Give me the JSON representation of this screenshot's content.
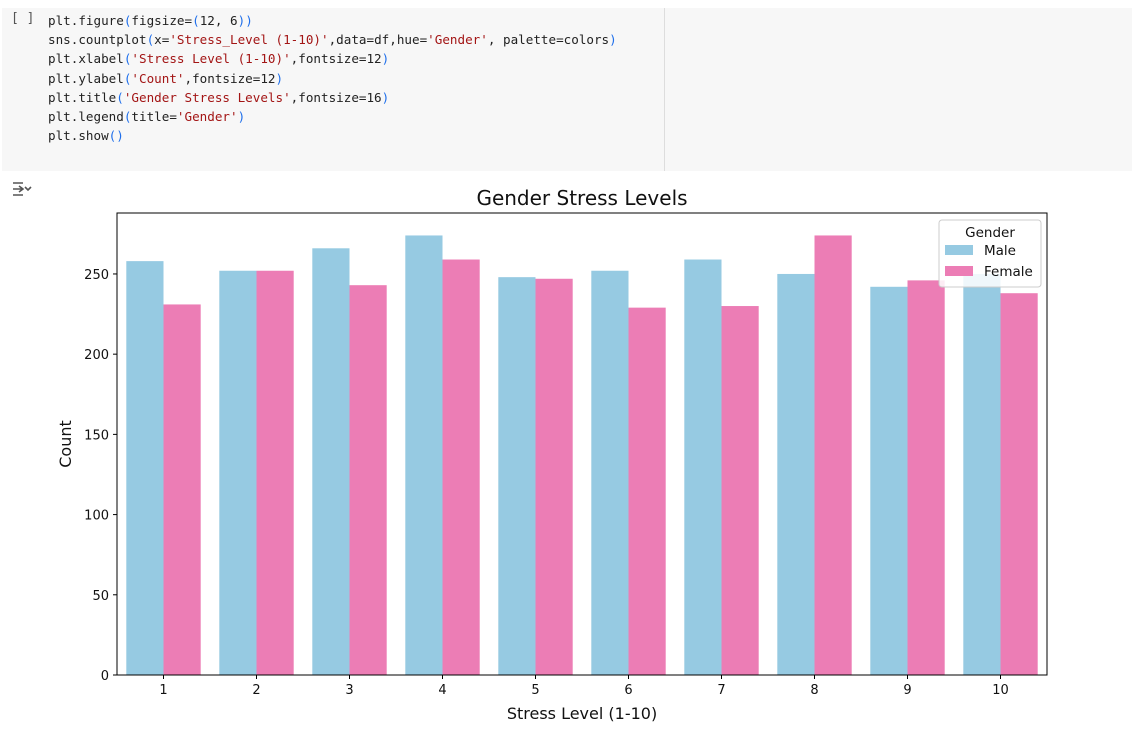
{
  "cell": {
    "run_label": "[ ]",
    "code_lines": [
      "plt.figure(figsize=(12, 6))",
      "sns.countplot(x='Stress_Level (1-10)',data=df,hue='Gender', palette=colors)",
      "plt.xlabel('Stress Level (1-10)',fontsize=12)",
      "plt.ylabel('Count',fontsize=12)",
      "plt.title('Gender Stress Levels',fontsize=16)",
      "plt.legend(title='Gender')",
      "plt.show()"
    ]
  },
  "chart_data": {
    "type": "bar",
    "title": "Gender Stress Levels",
    "xlabel": "Stress Level (1-10)",
    "ylabel": "Count",
    "categories": [
      "1",
      "2",
      "3",
      "4",
      "5",
      "6",
      "7",
      "8",
      "9",
      "10"
    ],
    "series": [
      {
        "name": "Male",
        "color": "#96cae2",
        "values": [
          258,
          252,
          266,
          274,
          248,
          252,
          259,
          250,
          242,
          250
        ]
      },
      {
        "name": "Female",
        "color": "#ec7db5",
        "values": [
          231,
          252,
          243,
          259,
          247,
          229,
          230,
          274,
          246,
          238
        ]
      }
    ],
    "yticks": [
      0,
      50,
      100,
      150,
      200,
      250
    ],
    "ylim": [
      0,
      288
    ],
    "legend": {
      "title": "Gender",
      "placement": "top-right"
    },
    "grid": false
  }
}
